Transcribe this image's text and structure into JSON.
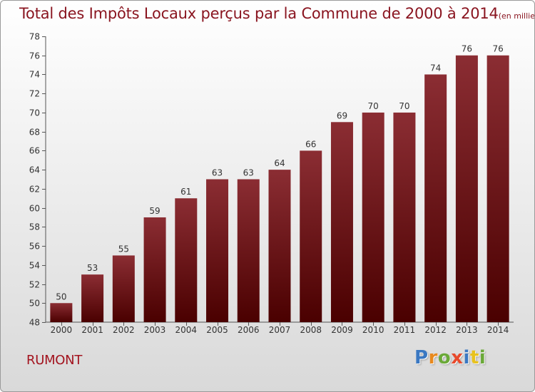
{
  "chart_data": {
    "type": "bar",
    "title": "Total des Impôts Locaux perçus par la Commune de 2000 à 2014",
    "unit": "(en milliers d'€)",
    "categories": [
      "2000",
      "2001",
      "2002",
      "2003",
      "2004",
      "2005",
      "2006",
      "2007",
      "2008",
      "2009",
      "2010",
      "2011",
      "2012",
      "2013",
      "2014"
    ],
    "values": [
      50,
      53,
      55,
      59,
      61,
      63,
      63,
      64,
      66,
      69,
      70,
      70,
      74,
      76,
      76
    ],
    "ylim": [
      48,
      78
    ],
    "yticks": [
      48,
      50,
      52,
      54,
      56,
      58,
      60,
      62,
      64,
      66,
      68,
      70,
      72,
      74,
      76,
      78
    ],
    "grid": false,
    "bar_color_top": "#8b2d33",
    "bar_color_bottom": "#4a0000"
  },
  "commune": "RUMONT",
  "logo": {
    "letters": [
      "P",
      "r",
      "o",
      "x",
      "i",
      "t",
      "i"
    ],
    "colors": [
      "#3a78c2",
      "#e8891e",
      "#6aa938",
      "#e84a2c",
      "#3a78c2",
      "#e8c21e",
      "#6aa938"
    ]
  }
}
